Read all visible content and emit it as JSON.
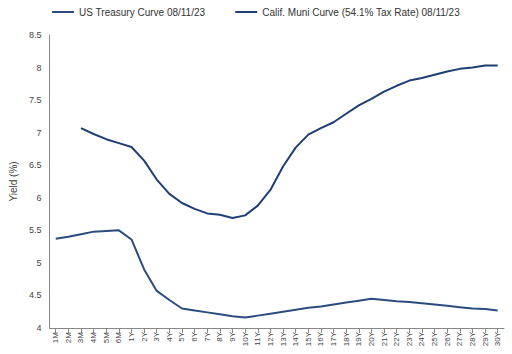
{
  "chart_data": {
    "type": "line",
    "y_label": "Yield (%)",
    "categories": [
      "1M",
      "2M",
      "3M",
      "4M",
      "5M",
      "6M",
      "1Y",
      "2Y",
      "3Y",
      "4Y",
      "5Y",
      "6Y",
      "7Y",
      "8Y",
      "9Y",
      "10Y",
      "11Y",
      "12Y",
      "13Y",
      "14Y",
      "15Y",
      "16Y",
      "17Y",
      "18Y",
      "19Y",
      "20Y",
      "21Y",
      "22Y",
      "23Y",
      "24Y",
      "25Y",
      "26Y",
      "27Y",
      "28Y",
      "29Y",
      "30Y"
    ],
    "series": [
      {
        "name": "US Treasury Curve 08/11/23",
        "color": "#2b4c7e",
        "values": [
          5.37,
          5.4,
          5.44,
          5.48,
          5.49,
          5.5,
          5.36,
          4.9,
          4.57,
          4.43,
          4.3,
          4.27,
          4.24,
          4.21,
          4.18,
          4.16,
          4.19,
          4.22,
          4.25,
          4.28,
          4.31,
          4.33,
          4.36,
          4.39,
          4.42,
          4.45,
          4.43,
          4.41,
          4.4,
          4.38,
          4.36,
          4.34,
          4.32,
          4.3,
          4.29,
          4.27
        ]
      },
      {
        "name": "Calif. Muni Curve (54.1% Tax Rate) 08/11/23",
        "color": "#1f3f74",
        "values": [
          null,
          null,
          7.07,
          6.98,
          6.9,
          6.84,
          6.78,
          6.57,
          6.28,
          6.06,
          5.92,
          5.83,
          5.76,
          5.74,
          5.69,
          5.73,
          5.88,
          6.12,
          6.48,
          6.77,
          6.97,
          7.07,
          7.16,
          7.29,
          7.42,
          7.52,
          7.63,
          7.72,
          7.8,
          7.84,
          7.89,
          7.94,
          7.98,
          8.0,
          8.03,
          8.03
        ]
      }
    ],
    "ylim": [
      4,
      8.5
    ],
    "yticks": [
      4,
      4.5,
      5,
      5.5,
      6,
      6.5,
      7,
      7.5,
      8,
      8.5
    ],
    "grid": false,
    "legend": "top"
  }
}
